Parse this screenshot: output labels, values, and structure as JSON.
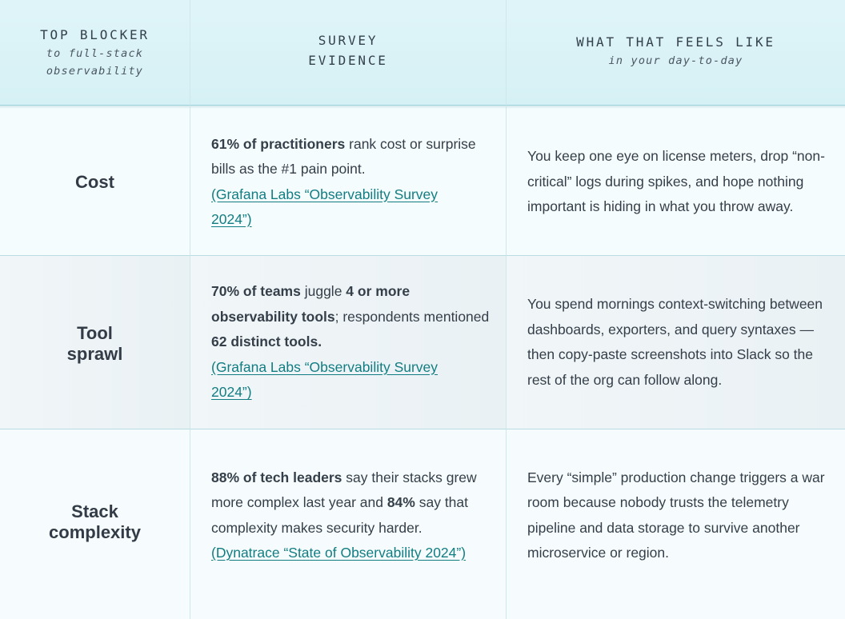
{
  "header": {
    "col1_title": "TOP BLOCKER",
    "col1_sub": "to full-stack observability",
    "col2_title": "SURVEY EVIDENCE",
    "col3_title": "WHAT THAT FEELS LIKE",
    "col3_sub": "in your day-to-day"
  },
  "rows": [
    {
      "blocker": "Cost",
      "evidence": {
        "bold1": "61% of practitioners",
        "text1": " rank cost or surprise bills as the #1 pain point. ",
        "link": "(Grafana Labs “Observability Survey 2024”)"
      },
      "feel": "You keep one eye on license meters, drop “non-critical” logs during spikes, and hope nothing important is hiding in what you throw away."
    },
    {
      "blocker": "Tool sprawl",
      "evidence": {
        "bold1": "70% of teams",
        "text1": " juggle ",
        "bold2": "4 or more observability tools",
        "text2": "; respondents mentioned ",
        "bold3": "62 distinct tools.",
        "link": "(Grafana Labs “Observability Survey 2024”)"
      },
      "feel": "You spend mornings context-switching between dashboards, exporters, and query syntaxes — then copy-paste screenshots into Slack so the rest of the org can follow along."
    },
    {
      "blocker": "Stack complexity",
      "evidence": {
        "bold1": "88% of tech leaders",
        "text1": " say their stacks grew more complex last year and ",
        "bold2": "84%",
        "text2": " say that complexity makes security harder. ",
        "link": "(Dynatrace “State of Observability 2024”)"
      },
      "feel": "Every “simple” production change triggers a war room because nobody trusts the telemetry pipeline and data storage to survive another microservice or region."
    }
  ]
}
